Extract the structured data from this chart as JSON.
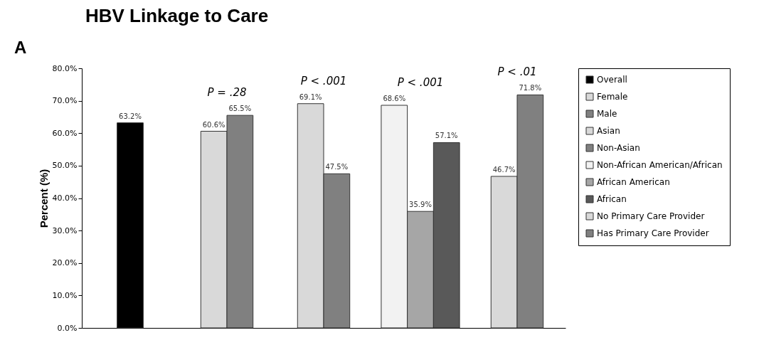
{
  "chart_data": {
    "type": "bar",
    "title": "HBV Linkage to Care",
    "ylabel": "Percent (%)",
    "categories": [
      null,
      null,
      null,
      null,
      null
    ],
    "series": [
      {
        "name": "Overall",
        "color": "#000000",
        "values": [
          63.2,
          null,
          null,
          null,
          null
        ],
        "value_labels": [
          "63.2%",
          null,
          null,
          null,
          null
        ]
      },
      {
        "name": "Female",
        "color": "#d9d9d9",
        "values": [
          null,
          60.6,
          null,
          null,
          null
        ],
        "value_labels": [
          null,
          "60.6%",
          null,
          null,
          null
        ]
      },
      {
        "name": "Male",
        "color": "#808080",
        "values": [
          null,
          65.5,
          null,
          null,
          null
        ],
        "value_labels": [
          null,
          "65.5%",
          null,
          null,
          null
        ]
      },
      {
        "name": "Asian",
        "color": "#d9d9d9",
        "values": [
          null,
          null,
          69.1,
          null,
          null
        ],
        "value_labels": [
          null,
          null,
          "69.1%",
          null,
          null
        ]
      },
      {
        "name": "Non-Asian",
        "color": "#808080",
        "values": [
          null,
          null,
          47.5,
          null,
          null
        ],
        "value_labels": [
          null,
          null,
          "47.5%",
          null,
          null
        ]
      },
      {
        "name": "Non-African American/African",
        "color": "#f2f2f2",
        "values": [
          null,
          null,
          null,
          68.6,
          null
        ],
        "value_labels": [
          null,
          null,
          null,
          "68.6%",
          null
        ]
      },
      {
        "name": "African American",
        "color": "#a6a6a6",
        "values": [
          null,
          null,
          null,
          35.9,
          null
        ],
        "value_labels": [
          null,
          null,
          null,
          "35.9%",
          null
        ]
      },
      {
        "name": "African",
        "color": "#595959",
        "values": [
          null,
          null,
          null,
          57.1,
          null
        ],
        "value_labels": [
          null,
          null,
          null,
          "57.1%",
          null
        ]
      },
      {
        "name": "No Primary Care Provider",
        "color": "#d9d9d9",
        "values": [
          null,
          null,
          null,
          null,
          46.7
        ],
        "value_labels": [
          null,
          null,
          null,
          null,
          "46.7%"
        ]
      },
      {
        "name": "Has Primary Care Provider",
        "color": "#808080",
        "values": [
          null,
          null,
          null,
          null,
          71.8
        ],
        "value_labels": [
          null,
          null,
          null,
          null,
          "71.8%"
        ]
      }
    ],
    "ylim": [
      0,
      80
    ],
    "yticks": [
      {
        "value": 0,
        "label": "0.0%"
      },
      {
        "value": 10,
        "label": "10.0%"
      },
      {
        "value": 20,
        "label": "20.0%"
      },
      {
        "value": 30,
        "label": "30.0%"
      },
      {
        "value": 40,
        "label": "40.0%"
      },
      {
        "value": 50,
        "label": "50.0%"
      },
      {
        "value": 60,
        "label": "60.0%"
      },
      {
        "value": 70,
        "label": "70.0%"
      },
      {
        "value": 80,
        "label": "80.0%"
      }
    ],
    "annotations": [
      "A",
      "P = .28",
      "P < .001",
      "P < .001",
      "P < .01"
    ],
    "tick_labels": "y",
    "grid": false,
    "legend": "right"
  }
}
